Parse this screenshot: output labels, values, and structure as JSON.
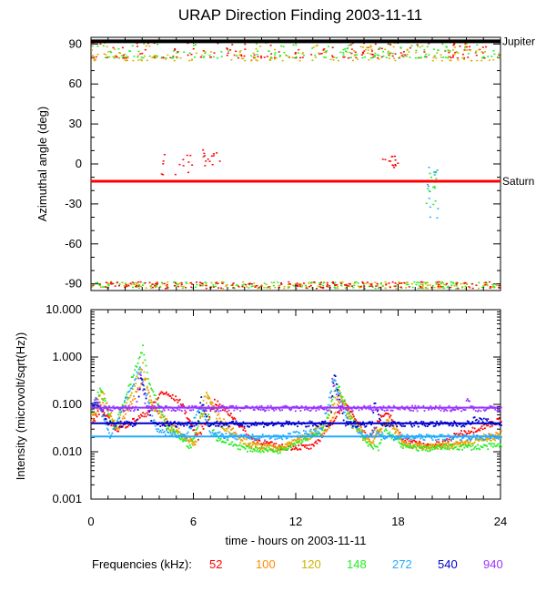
{
  "chart_data": [
    {
      "type": "scatter",
      "title": "URAP Direction Finding  2003-11-11",
      "ylabel": "Azimuthal angle (deg)",
      "xlim": [
        0,
        24
      ],
      "ylim": [
        -95,
        95
      ],
      "y_ticks": [
        -90,
        -60,
        -30,
        0,
        30,
        60,
        90
      ],
      "grid": false,
      "reference_lines": [
        {
          "label": "Jupiter",
          "y": 92,
          "color": "#000000"
        },
        {
          "label": "Saturn",
          "y": -13,
          "color": "#ff0000"
        }
      ],
      "clusters": [
        {
          "freq": "52",
          "x": [
            0,
            24
          ],
          "y": [
            80,
            93
          ]
        },
        {
          "freq": "148",
          "x": [
            0,
            24
          ],
          "y": [
            80,
            93
          ]
        },
        {
          "freq": "120",
          "x": [
            0,
            24
          ],
          "y": [
            78,
            93
          ]
        },
        {
          "freq": "148",
          "x": [
            0,
            24
          ],
          "y": [
            -93,
            -88
          ]
        },
        {
          "freq": "120",
          "x": [
            0,
            24
          ],
          "y": [
            -93,
            -88
          ]
        },
        {
          "freq": "52",
          "x": [
            0,
            24
          ],
          "y": [
            -93,
            -88
          ]
        },
        {
          "freq": "52",
          "x": [
            6.5,
            7.5
          ],
          "y": [
            -2,
            12
          ]
        },
        {
          "freq": "52",
          "x": [
            17,
            18
          ],
          "y": [
            -3,
            10
          ]
        },
        {
          "freq": "272",
          "x": [
            19.5,
            20.3
          ],
          "y": [
            -40,
            0
          ]
        },
        {
          "freq": "148",
          "x": [
            19.6,
            20.2
          ],
          "y": [
            -30,
            -5
          ]
        },
        {
          "freq": "52",
          "x": [
            4,
            6
          ],
          "y": [
            -8,
            15
          ]
        }
      ]
    },
    {
      "type": "line",
      "ylabel": "Intensity (microvolt/sqrt(Hz))",
      "xlabel": "time - hours on 2003-11-11",
      "xlim": [
        0,
        24
      ],
      "x_ticks": [
        0,
        6,
        12,
        18,
        24
      ],
      "ylim": [
        0.001,
        10
      ],
      "yscale": "log",
      "y_ticks": [
        "0.001",
        "0.010",
        "0.100",
        "1.000",
        "10.000"
      ],
      "series": [
        {
          "name": "52",
          "color": "#ff0000",
          "background": 0.012,
          "threshold_line": null,
          "x": [
            0,
            0.5,
            1.5,
            3.3,
            4.1,
            5.2,
            6.2,
            6.9,
            7.2,
            8.2,
            9.3,
            11,
            13,
            14.2,
            14.8,
            15.4,
            16.2,
            17,
            17.5,
            18.2,
            19.5,
            20.5,
            21.5,
            23,
            24
          ],
          "y": [
            0.04,
            0.08,
            0.03,
            0.07,
            0.19,
            0.12,
            0.02,
            0.06,
            0.12,
            0.06,
            0.02,
            0.013,
            0.013,
            0.05,
            0.11,
            0.06,
            0.02,
            0.06,
            0.06,
            0.02,
            0.014,
            0.015,
            0.025,
            0.035,
            0.05
          ]
        },
        {
          "name": "100",
          "color": "#ff8c00",
          "background": 0.013,
          "threshold_line": null,
          "x": [
            0,
            0.6,
            1.5,
            3.1,
            3.6,
            4.6,
            6.1,
            6.8,
            7.6,
            9.2,
            11,
            13.8,
            14.6,
            15.3,
            16.4,
            17.4,
            18.4,
            19.6,
            21,
            22.6,
            24
          ],
          "y": [
            0.05,
            0.12,
            0.03,
            0.4,
            0.09,
            0.04,
            0.015,
            0.15,
            0.05,
            0.015,
            0.012,
            0.03,
            0.14,
            0.05,
            0.016,
            0.05,
            0.015,
            0.013,
            0.014,
            0.02,
            0.025
          ]
        },
        {
          "name": "120",
          "color": "#d4b000",
          "background": 0.013,
          "threshold_line": null,
          "x": [
            0,
            0.6,
            1.4,
            3,
            3.4,
            4.4,
            6,
            6.7,
            7.5,
            9,
            11,
            13.7,
            14.5,
            15.2,
            16.3,
            17.3,
            18.3,
            19.6,
            21,
            22.6,
            24
          ],
          "y": [
            0.06,
            0.2,
            0.035,
            0.7,
            0.12,
            0.035,
            0.015,
            0.2,
            0.04,
            0.014,
            0.012,
            0.04,
            0.2,
            0.04,
            0.016,
            0.05,
            0.014,
            0.013,
            0.014,
            0.018,
            0.022
          ]
        },
        {
          "name": "148",
          "color": "#22ee22",
          "background": 0.012,
          "threshold_line": null,
          "x": [
            0,
            0.5,
            1.3,
            3,
            3.3,
            4.3,
            5.8,
            6.6,
            7.3,
            9,
            11,
            13.6,
            14.4,
            15.1,
            16.2,
            16.8,
            17.2,
            18.3,
            19.6,
            21,
            22.6,
            24
          ],
          "y": [
            0.08,
            0.22,
            0.03,
            1.6,
            0.35,
            0.04,
            0.013,
            0.1,
            0.02,
            0.012,
            0.011,
            0.03,
            0.3,
            0.06,
            0.014,
            0.012,
            0.03,
            0.013,
            0.012,
            0.013,
            0.013,
            0.014
          ]
        },
        {
          "name": "272",
          "color": "#22aaff",
          "background": 0.021,
          "threshold_line": 0.021,
          "x": [
            0,
            0.4,
            1.1,
            2.8,
            3,
            3.8,
            5.5,
            6.4,
            7,
            8.5,
            11,
            13.5,
            14.2,
            14.9,
            16,
            16.6,
            17.2,
            18,
            20,
            22,
            24
          ],
          "y": [
            0.1,
            0.1,
            0.022,
            0.6,
            0.3,
            0.03,
            0.021,
            0.1,
            0.025,
            0.021,
            0.021,
            0.03,
            0.4,
            0.05,
            0.021,
            0.03,
            0.021,
            0.021,
            0.021,
            0.021,
            0.021
          ]
        },
        {
          "name": "540",
          "color": "#0000cc",
          "background": 0.04,
          "threshold_line": 0.04,
          "x": [
            0,
            0.3,
            1,
            2.6,
            2.9,
            3.5,
            6.2,
            6.4,
            6.8,
            14,
            14.2,
            14.8,
            16.4,
            16.6,
            17,
            22,
            22.4,
            24
          ],
          "y": [
            0.1,
            0.12,
            0.04,
            0.04,
            0.4,
            0.04,
            0.04,
            0.15,
            0.04,
            0.04,
            0.5,
            0.04,
            0.04,
            0.12,
            0.04,
            0.04,
            0.05,
            0.04
          ]
        },
        {
          "name": "940",
          "color": "#9933ff",
          "background": 0.085,
          "threshold_line": 0.085,
          "x": [
            0,
            0.2,
            0.6,
            2.6,
            2.8,
            3.2,
            14,
            14.1,
            14.5,
            21.9,
            22,
            22.3,
            24
          ],
          "y": [
            0.085,
            0.14,
            0.085,
            0.085,
            0.55,
            0.085,
            0.085,
            0.35,
            0.085,
            0.085,
            0.14,
            0.085,
            0.085
          ]
        }
      ]
    }
  ],
  "legend": {
    "label": "Frequencies (kHz):",
    "items": [
      {
        "text": "52",
        "color": "#ff0000"
      },
      {
        "text": "100",
        "color": "#ff8c00"
      },
      {
        "text": "120",
        "color": "#d4b000"
      },
      {
        "text": "148",
        "color": "#22ee22"
      },
      {
        "text": "272",
        "color": "#22aaff"
      },
      {
        "text": "540",
        "color": "#0000cc"
      },
      {
        "text": "940",
        "color": "#9933ff"
      }
    ]
  }
}
